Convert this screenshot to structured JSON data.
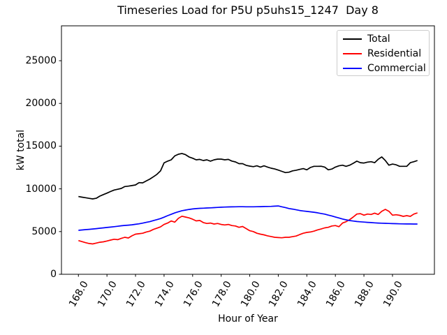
{
  "title": "Timeseries Load for P5U p5uhs15_1247  Day 8",
  "chart_data": {
    "type": "line",
    "title": "Timeseries Load for P5U p5uhs15_1247  Day 8",
    "xlabel": "Hour of Year",
    "ylabel": "kW total",
    "xlim": [
      166.8125,
      192.9375
    ],
    "ylim": [
      0,
      29085
    ],
    "grid": false,
    "legend_position": "upper right",
    "x_tick_rotation": 60,
    "xticks": {
      "values": [
        168,
        170,
        172,
        174,
        176,
        178,
        180,
        182,
        184,
        186,
        188,
        190
      ],
      "labels": [
        "168.0",
        "170.0",
        "172.0",
        "174.0",
        "176.0",
        "178.0",
        "180.0",
        "182.0",
        "184.0",
        "186.0",
        "188.0",
        "190.0"
      ]
    },
    "yticks": {
      "values": [
        0,
        5000,
        10000,
        15000,
        20000,
        25000
      ],
      "labels": [
        "0",
        "5000",
        "10000",
        "15000",
        "20000",
        "25000"
      ]
    },
    "x_start": 168.0,
    "x_step": 0.25,
    "series": [
      {
        "name": "Total",
        "color": "#000000",
        "values": [
          9100,
          9030,
          8960,
          8890,
          8820,
          8900,
          9150,
          9330,
          9500,
          9690,
          9860,
          9950,
          10050,
          10270,
          10320,
          10380,
          10460,
          10730,
          10700,
          10920,
          11140,
          11410,
          11700,
          12100,
          13040,
          13240,
          13400,
          13860,
          14050,
          14140,
          14000,
          13730,
          13590,
          13400,
          13450,
          13320,
          13400,
          13240,
          13400,
          13480,
          13480,
          13400,
          13450,
          13250,
          13150,
          12950,
          12950,
          12750,
          12660,
          12600,
          12700,
          12550,
          12700,
          12550,
          12420,
          12330,
          12200,
          12050,
          11900,
          11950,
          12110,
          12180,
          12280,
          12370,
          12230,
          12500,
          12640,
          12640,
          12650,
          12550,
          12230,
          12320,
          12550,
          12700,
          12770,
          12640,
          12770,
          12990,
          13240,
          13060,
          13020,
          13130,
          13180,
          13060,
          13460,
          13730,
          13320,
          12770,
          12900,
          12820,
          12640,
          12640,
          12640,
          13060,
          13180,
          13320
        ]
      },
      {
        "name": "Residential",
        "color": "#ff0000",
        "values": [
          3950,
          3820,
          3700,
          3600,
          3550,
          3650,
          3750,
          3800,
          3900,
          4000,
          4100,
          4050,
          4200,
          4330,
          4250,
          4500,
          4700,
          4750,
          4800,
          4950,
          5050,
          5250,
          5400,
          5550,
          5830,
          6000,
          6240,
          6100,
          6550,
          6800,
          6700,
          6600,
          6450,
          6250,
          6300,
          6050,
          5950,
          6000,
          5880,
          5950,
          5830,
          5780,
          5830,
          5700,
          5650,
          5500,
          5600,
          5350,
          5100,
          5000,
          4800,
          4700,
          4620,
          4500,
          4420,
          4330,
          4300,
          4270,
          4330,
          4330,
          4400,
          4480,
          4650,
          4800,
          4900,
          4950,
          5050,
          5200,
          5300,
          5430,
          5500,
          5650,
          5700,
          5570,
          6000,
          6150,
          6400,
          6700,
          7050,
          7100,
          6920,
          7050,
          7000,
          7160,
          7000,
          7380,
          7600,
          7380,
          6920,
          6970,
          6900,
          6780,
          6860,
          6780,
          7050,
          7190
        ]
      },
      {
        "name": "Commercial",
        "color": "#0000ff",
        "values": [
          5150,
          5190,
          5230,
          5260,
          5300,
          5340,
          5390,
          5430,
          5480,
          5520,
          5570,
          5620,
          5680,
          5720,
          5750,
          5790,
          5850,
          5910,
          5990,
          6080,
          6160,
          6280,
          6400,
          6520,
          6680,
          6860,
          7020,
          7180,
          7320,
          7440,
          7520,
          7590,
          7650,
          7690,
          7720,
          7740,
          7760,
          7780,
          7800,
          7830,
          7850,
          7870,
          7880,
          7890,
          7900,
          7910,
          7910,
          7900,
          7900,
          7900,
          7910,
          7920,
          7930,
          7940,
          7950,
          7970,
          8000,
          7900,
          7810,
          7700,
          7630,
          7550,
          7470,
          7410,
          7360,
          7310,
          7260,
          7200,
          7120,
          7040,
          6930,
          6830,
          6710,
          6590,
          6470,
          6370,
          6290,
          6230,
          6180,
          6140,
          6110,
          6080,
          6050,
          6020,
          6000,
          5980,
          5960,
          5950,
          5930,
          5920,
          5910,
          5900,
          5890,
          5890,
          5880,
          5880
        ]
      }
    ]
  }
}
